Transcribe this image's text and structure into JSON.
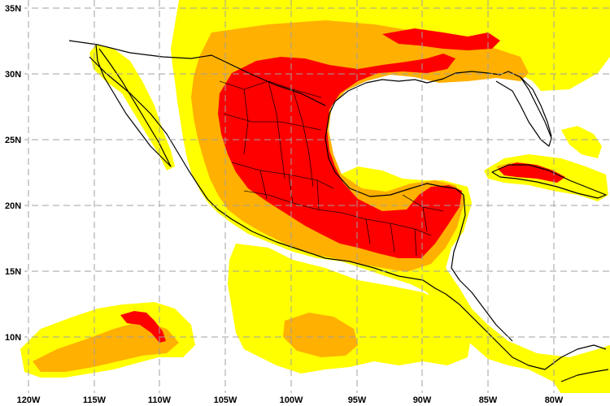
{
  "map": {
    "colors": {
      "light": "#ffff00",
      "moderate": "#ffb000",
      "intense": "#ff0000",
      "background": "#ffffff",
      "grid": "#a0a0a0",
      "border": "#000000"
    },
    "lon_ticks": [
      "120W",
      "115W",
      "110W",
      "105W",
      "100W",
      "95W",
      "90W",
      "85W",
      "80W"
    ],
    "lat_ticks": [
      "35N",
      "30N",
      "25N",
      "20N",
      "15N",
      "10N"
    ]
  }
}
